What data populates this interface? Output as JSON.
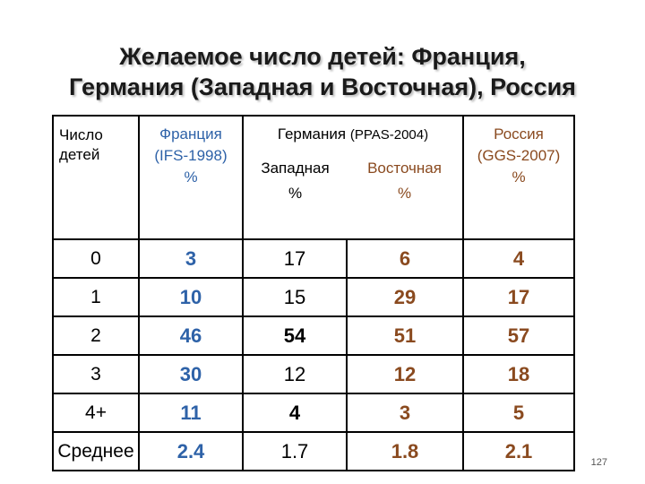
{
  "title_line1": "Желаемое число детей: Франция,",
  "title_line2": "Германия (Западная и Восточная), Россия",
  "header": {
    "col0_line1": "Число",
    "col0_line2": "детей",
    "france": "Франция",
    "france_src": "(IFS-1998)",
    "france_unit": "%",
    "germany": "Германия",
    "germany_src": "(PPAS-2004)",
    "west": "Западная",
    "west_unit": "%",
    "east": "Восточная",
    "east_unit": "%",
    "russia": "Россия",
    "russia_src": "(GGS-2007)",
    "russia_unit": "%"
  },
  "rows": [
    {
      "label": "0",
      "france": "3",
      "west": "17",
      "east": "6",
      "russia": "4"
    },
    {
      "label": "1",
      "france": "10",
      "west": "15",
      "east": "29",
      "russia": "17"
    },
    {
      "label": "2",
      "france": "46",
      "west": "54",
      "east": "51",
      "russia": "57"
    },
    {
      "label": "3",
      "france": "30",
      "west": "12",
      "east": "12",
      "russia": "18"
    },
    {
      "label": "4+",
      "france": "11",
      "west": "4",
      "east": "3",
      "russia": "5"
    },
    {
      "label": "Среднее",
      "france": "2.4",
      "west": "1.7",
      "east": "1.8",
      "russia": "2.1"
    }
  ],
  "page_number": "127",
  "colors": {
    "france": "#2e62a8",
    "east": "#8a4a1f",
    "russia": "#8a4a1f"
  }
}
